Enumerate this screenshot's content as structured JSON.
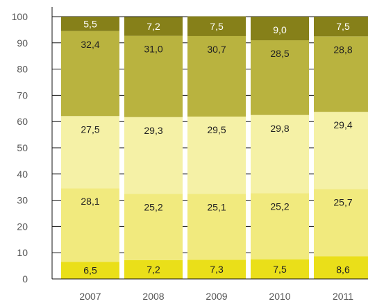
{
  "chart_data": {
    "type": "bar",
    "stacked": true,
    "title": "",
    "xlabel": "",
    "ylabel": "",
    "ylim": [
      0,
      100
    ],
    "yticks": [
      "0",
      "10",
      "20",
      "30",
      "40",
      "50",
      "60",
      "70",
      "80",
      "90",
      "100"
    ],
    "grid": true,
    "categories": [
      "2007",
      "2008",
      "2009",
      "2010",
      "2011"
    ],
    "series": [
      {
        "values": [
          6.5,
          7.2,
          7.3,
          7.5,
          8.6
        ],
        "labels": [
          "6,5",
          "7,2",
          "7,3",
          "7,5",
          "8,6"
        ],
        "color": "#eadf19",
        "label_color": "#222222"
      },
      {
        "values": [
          28.1,
          25.2,
          25.1,
          25.2,
          25.7
        ],
        "labels": [
          "28,1",
          "25,2",
          "25,1",
          "25,2",
          "25,7"
        ],
        "color": "#f1ea7e",
        "label_color": "#222222"
      },
      {
        "values": [
          27.5,
          29.3,
          29.5,
          29.8,
          29.4
        ],
        "labels": [
          "27,5",
          "29,3",
          "29,5",
          "29,8",
          "29,4"
        ],
        "color": "#f5f1a6",
        "label_color": "#222222"
      },
      {
        "values": [
          32.4,
          31.0,
          30.7,
          28.5,
          28.8
        ],
        "labels": [
          "32,4",
          "31,0",
          "30,7",
          "28,5",
          "28,8"
        ],
        "color": "#b9b33f",
        "label_color": "#222222"
      },
      {
        "values": [
          5.5,
          7.2,
          7.5,
          9.0,
          7.5
        ],
        "labels": [
          "5,5",
          "7,2",
          "7,5",
          "9,0",
          "7,5"
        ],
        "color": "#868019",
        "label_color": "#ffffff"
      }
    ],
    "colors": {
      "axis": "#111111",
      "gridline": "#111111",
      "tick_text": "#555555"
    }
  }
}
